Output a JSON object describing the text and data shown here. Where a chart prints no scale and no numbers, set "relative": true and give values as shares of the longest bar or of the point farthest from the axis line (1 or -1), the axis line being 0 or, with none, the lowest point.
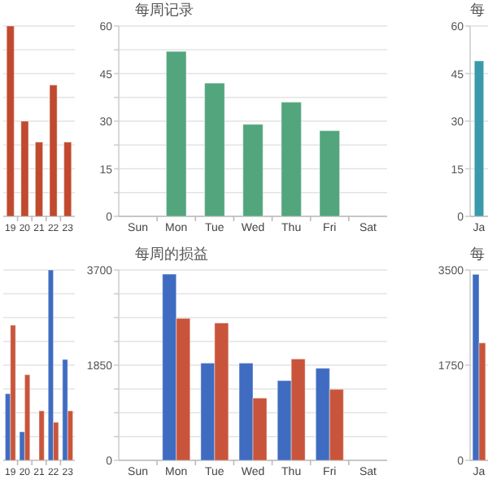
{
  "chart_data": [
    {
      "type": "bar",
      "categories": [
        "19",
        "20",
        "21",
        "22",
        "23"
      ],
      "values": [
        1,
        0.5,
        0.39,
        0.69,
        0.39
      ],
      "color": "#c0492f",
      "relative": true,
      "grid": true
    },
    {
      "type": "bar",
      "title": "每周记录",
      "categories": [
        "Sun",
        "Mon",
        "Tue",
        "Wed",
        "Thu",
        "Fri",
        "Sat"
      ],
      "values": [
        null,
        52,
        42,
        29,
        36,
        27,
        null
      ],
      "color": "#52a57c",
      "ylim": [
        0,
        60
      ],
      "yticks": [
        0,
        {
          "value": 7.5,
          "label": null
        },
        15,
        {
          "value": 22.5,
          "label": null
        },
        30,
        {
          "value": 37.5,
          "label": null
        },
        45,
        {
          "value": 52.5,
          "label": null
        },
        60
      ],
      "grid": true
    },
    {
      "type": "bar",
      "title": "每",
      "categories": [
        "Ja"
      ],
      "values": [
        49
      ],
      "color": "#3a9aab",
      "ylim": [
        0,
        60
      ],
      "yticks": [
        0,
        15,
        30,
        45,
        60
      ],
      "grid": true
    },
    {
      "type": "bar",
      "categories": [
        "19",
        "20",
        "21",
        "22",
        "23"
      ],
      "series": [
        {
          "color": "#3f6cc0",
          "values": [
            0.35,
            0.15,
            null,
            1,
            0.53
          ]
        },
        {
          "color": "#c8553b",
          "values": [
            0.71,
            0.45,
            0.26,
            0.2,
            0.26
          ]
        }
      ],
      "relative": true,
      "grid": true
    },
    {
      "type": "bar",
      "title": "每周的损益",
      "categories": [
        "Sun",
        "Mon",
        "Tue",
        "Wed",
        "Thu",
        "Fri",
        "Sat"
      ],
      "series": [
        {
          "color": "#3f6cc0",
          "values": [
            null,
            3620,
            1890,
            1890,
            1550,
            1790,
            null
          ]
        },
        {
          "color": "#c8553b",
          "values": [
            null,
            2760,
            2670,
            1210,
            1970,
            1380,
            null
          ]
        }
      ],
      "ylim": [
        0,
        3700
      ],
      "yticks": [
        0,
        {
          "value": 462.5,
          "label": null
        },
        {
          "value": 925,
          "label": null
        },
        {
          "value": 1387.5,
          "label": null
        },
        1850,
        {
          "value": 2312.5,
          "label": null
        },
        {
          "value": 2775,
          "label": null
        },
        {
          "value": 3237.5,
          "label": null
        },
        3700
      ],
      "grid": true
    },
    {
      "type": "bar",
      "title": "每",
      "categories": [
        "Ja"
      ],
      "series": [
        {
          "color": "#3f6cc0",
          "values": [
            3420
          ]
        },
        {
          "color": "#c8553b",
          "values": [
            2160
          ]
        }
      ],
      "ylim": [
        0,
        3500
      ],
      "yticks": [
        0,
        1750,
        3500
      ],
      "grid": true
    }
  ]
}
